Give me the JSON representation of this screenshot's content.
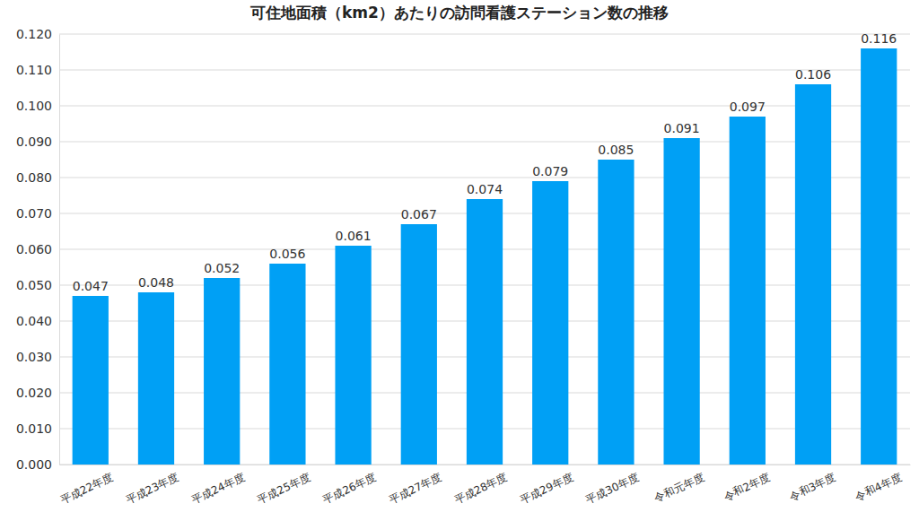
{
  "chart_data": {
    "type": "bar",
    "title": "可住地面積（km2）あたりの訪問看護ステーション数の推移",
    "categories": [
      "平成22年度",
      "平成23年度",
      "平成24年度",
      "平成25年度",
      "平成26年度",
      "平成27年度",
      "平成28年度",
      "平成29年度",
      "平成30年度",
      "令和元年度",
      "令和2年度",
      "令和3年度",
      "令和4年度"
    ],
    "values": [
      0.047,
      0.048,
      0.052,
      0.056,
      0.061,
      0.067,
      0.074,
      0.079,
      0.085,
      0.091,
      0.097,
      0.106,
      0.116
    ],
    "color": "#00a0f5",
    "ylim": [
      0,
      0.12
    ],
    "yticks": [
      {
        "value": 0,
        "label": "0.000"
      },
      {
        "value": 0.01,
        "label": "0.010"
      },
      {
        "value": 0.02,
        "label": "0.020"
      },
      {
        "value": 0.03,
        "label": "0.030"
      },
      {
        "value": 0.04,
        "label": "0.040"
      },
      {
        "value": 0.05,
        "label": "0.050"
      },
      {
        "value": 0.06,
        "label": "0.060"
      },
      {
        "value": 0.07,
        "label": "0.070"
      },
      {
        "value": 0.08,
        "label": "0.080"
      },
      {
        "value": 0.09,
        "label": "0.090"
      },
      {
        "value": 0.1,
        "label": "0.100"
      },
      {
        "value": 0.11,
        "label": "0.110"
      },
      {
        "value": 0.12,
        "label": "0.120"
      }
    ],
    "grid": true,
    "data_labels": true
  }
}
